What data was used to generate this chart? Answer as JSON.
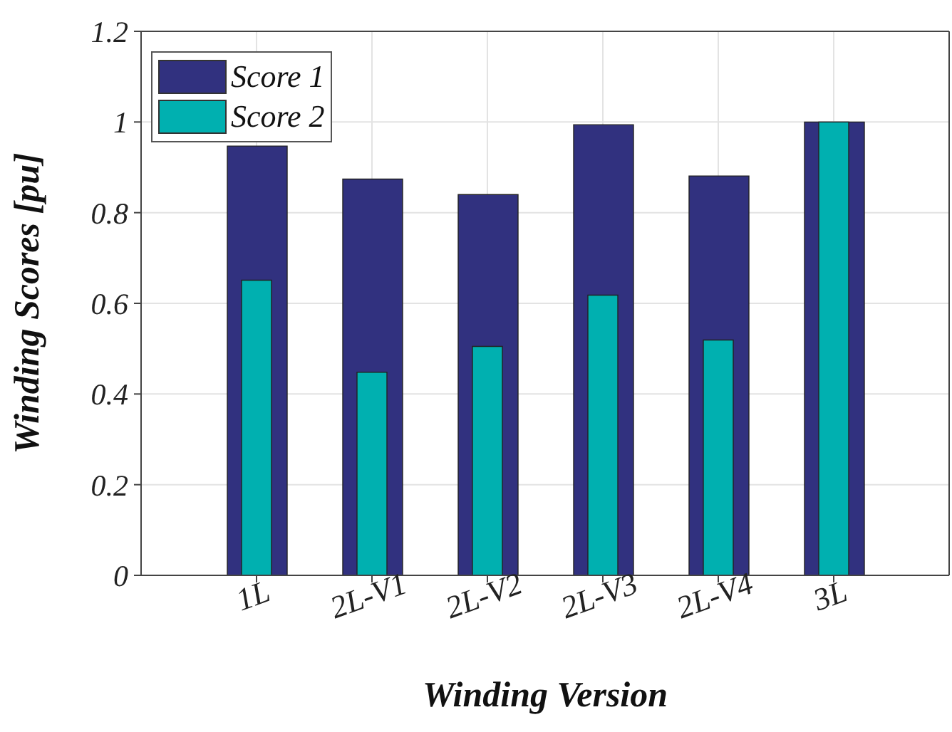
{
  "chart_data": {
    "type": "bar",
    "xlabel": "Winding Version",
    "ylabel": "Winding Scores [pu]",
    "categories": [
      "1L",
      "2L-V1",
      "2L-V2",
      "2L-V3",
      "2L-V4",
      "3L"
    ],
    "series": [
      {
        "name": "Score 1",
        "color": "#31317f",
        "values": [
          0.947,
          0.874,
          0.84,
          0.994,
          0.881,
          1.0
        ]
      },
      {
        "name": "Score 2",
        "color": "#00b0b0",
        "values": [
          0.651,
          0.448,
          0.505,
          0.618,
          0.519,
          1.0
        ]
      }
    ],
    "ylim": [
      0,
      1.2
    ],
    "yticks": [
      0,
      0.2,
      0.4,
      0.6,
      0.8,
      1,
      1.2
    ],
    "grid": true,
    "legend": "top left"
  }
}
